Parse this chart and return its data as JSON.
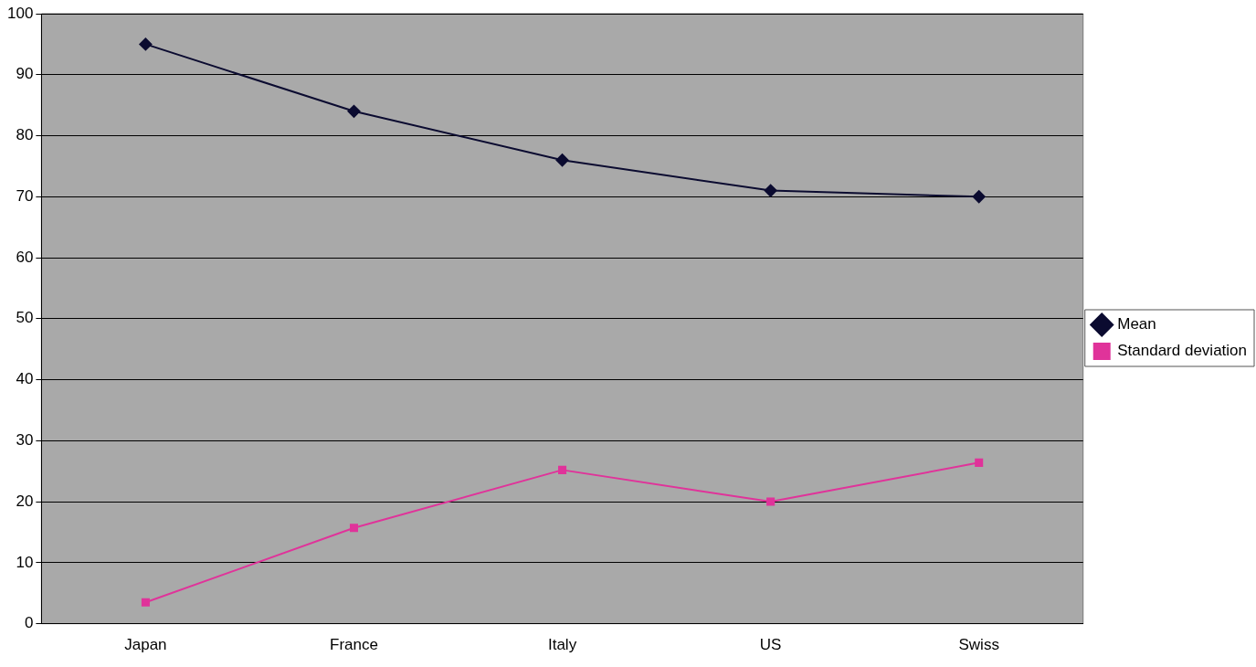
{
  "chart_data": {
    "type": "line",
    "categories": [
      "Japan",
      "France",
      "Italy",
      "US",
      "Swiss"
    ],
    "series": [
      {
        "name": "Mean",
        "color": "#0b0b30",
        "marker": "diamond",
        "values": [
          95,
          84,
          76,
          71,
          70
        ]
      },
      {
        "name": "Standard deviation",
        "color": "#e0339a",
        "marker": "square",
        "values": [
          3.5,
          15.7,
          25.2,
          20,
          26.4
        ]
      }
    ],
    "ylim": [
      0,
      100
    ],
    "yticks": [
      0,
      10,
      20,
      30,
      40,
      50,
      60,
      70,
      80,
      90,
      100
    ],
    "grid": "y",
    "legend": "right",
    "line_style": "solid"
  }
}
